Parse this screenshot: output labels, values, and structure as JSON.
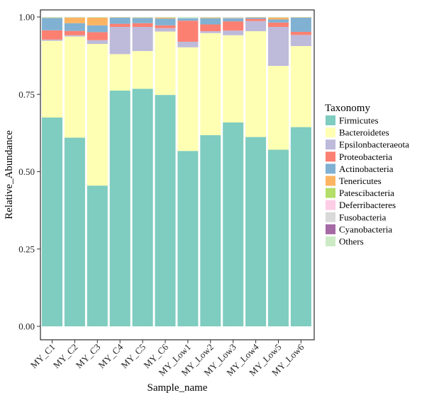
{
  "chart_data": {
    "type": "bar",
    "stacked": true,
    "title": "",
    "xlabel": "Sample_name",
    "ylabel": "Relative_Abundance",
    "ylim": [
      0,
      1
    ],
    "yticks": [
      "0.00",
      "0.25",
      "0.50",
      "0.75",
      "1.00"
    ],
    "grid": false,
    "legend_position": "right",
    "legend_title": "Taxonomy",
    "categories": [
      "MY_C1",
      "MY_C2",
      "MY_C3",
      "MY_C4",
      "MY_C5",
      "MY_C6",
      "MY_Low1",
      "MY_Low2",
      "MY_Low3",
      "MY_Low4",
      "MY_Low5",
      "MY_Low6"
    ],
    "series": [
      {
        "name": "Firmicutes",
        "color": "#7fccc0",
        "values": [
          0.675,
          0.61,
          0.455,
          0.762,
          0.768,
          0.748,
          0.567,
          0.618,
          0.659,
          0.612,
          0.571,
          0.644
        ]
      },
      {
        "name": "Bacteroidetes",
        "color": "#ffffb3",
        "values": [
          0.248,
          0.327,
          0.458,
          0.118,
          0.122,
          0.205,
          0.335,
          0.33,
          0.282,
          0.342,
          0.271,
          0.262
        ]
      },
      {
        "name": "Epsilonbacteraeota",
        "color": "#bebada",
        "values": [
          0.004,
          0.004,
          0.012,
          0.088,
          0.078,
          0.011,
          0.018,
          0.006,
          0.015,
          0.033,
          0.126,
          0.036
        ]
      },
      {
        "name": "Proteobacteria",
        "color": "#fb8072",
        "values": [
          0.03,
          0.014,
          0.026,
          0.01,
          0.012,
          0.009,
          0.068,
          0.022,
          0.03,
          0.007,
          0.014,
          0.01
        ]
      },
      {
        "name": "Actinobacteria",
        "color": "#80b1d3",
        "values": [
          0.04,
          0.025,
          0.022,
          0.02,
          0.017,
          0.022,
          0.008,
          0.02,
          0.01,
          0.004,
          0.01,
          0.046
        ]
      },
      {
        "name": "Tenericutes",
        "color": "#fdb462",
        "values": [
          0.001,
          0.018,
          0.025,
          0.001,
          0.001,
          0.003,
          0.0,
          0.002,
          0.001,
          0.001,
          0.006,
          0.001
        ]
      },
      {
        "name": "Patescibacteria",
        "color": "#b3de69",
        "values": [
          0.0,
          0.0,
          0.0,
          0.0,
          0.0,
          0.0,
          0.0,
          0.0,
          0.0,
          0.0,
          0.0,
          0.0
        ]
      },
      {
        "name": "Deferribacteres",
        "color": "#fccde5",
        "values": [
          0.0,
          0.0,
          0.0,
          0.0,
          0.0,
          0.0,
          0.0,
          0.0,
          0.001,
          0.0,
          0.0,
          0.0
        ]
      },
      {
        "name": "Fusobacteria",
        "color": "#d9d9d9",
        "values": [
          0.0,
          0.0,
          0.0,
          0.0,
          0.0,
          0.0,
          0.001,
          0.0,
          0.001,
          0.0,
          0.0,
          0.0
        ]
      },
      {
        "name": "Cyanobacteria",
        "color": "#a569a5",
        "values": [
          0.0,
          0.0,
          0.0,
          0.0,
          0.0,
          0.0,
          0.0,
          0.0,
          0.0,
          0.0,
          0.0,
          0.0
        ]
      },
      {
        "name": "Others",
        "color": "#ccebc5",
        "values": [
          0.002,
          0.002,
          0.002,
          0.001,
          0.002,
          0.002,
          0.003,
          0.002,
          0.001,
          0.001,
          0.002,
          0.001
        ]
      }
    ]
  }
}
